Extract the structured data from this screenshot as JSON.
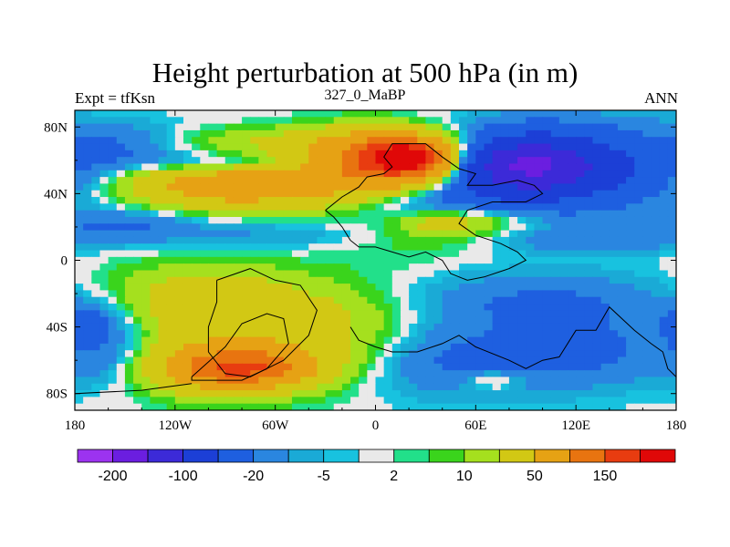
{
  "chart_data": {
    "type": "heatmap",
    "title": "Height perturbation at 500 hPa (in m)",
    "left_string": "Expt = tfKsn",
    "center_string": "327_0_MaBP",
    "right_string": "ANN",
    "x_range": [
      -180,
      180
    ],
    "y_range": [
      -90,
      90
    ],
    "x_ticks": [
      {
        "value": -180,
        "label": "180"
      },
      {
        "value": -120,
        "label": "120W"
      },
      {
        "value": -60,
        "label": "60W"
      },
      {
        "value": 0,
        "label": "0"
      },
      {
        "value": 60,
        "label": "60E"
      },
      {
        "value": 120,
        "label": "120E"
      },
      {
        "value": 180,
        "label": "180"
      }
    ],
    "y_ticks": [
      {
        "value": 80,
        "label": "80N"
      },
      {
        "value": 40,
        "label": "40N"
      },
      {
        "value": 0,
        "label": "0"
      },
      {
        "value": -40,
        "label": "40S"
      },
      {
        "value": -80,
        "label": "80S"
      }
    ],
    "colorbar": {
      "levels": [
        -200,
        -150,
        -100,
        -50,
        -20,
        -10,
        -5,
        -2,
        2,
        5,
        10,
        20,
        50,
        100,
        150,
        200
      ],
      "colors": [
        "#9c33f0",
        "#6b1ee0",
        "#3c2ad8",
        "#1c3fd6",
        "#1e5fe0",
        "#2a86e0",
        "#1aaad6",
        "#18c2df",
        "#e9e9e9",
        "#22e08a",
        "#3ad41c",
        "#a5e01e",
        "#d2c814",
        "#e6a214",
        "#e87410",
        "#e83c10",
        "#e00808"
      ],
      "labels": [
        {
          "value": -200,
          "text": "-200"
        },
        {
          "value": -100,
          "text": "-100"
        },
        {
          "value": -20,
          "text": "-20"
        },
        {
          "value": -5,
          "text": "-5"
        },
        {
          "value": 2,
          "text": "2"
        },
        {
          "value": 10,
          "text": "10"
        },
        {
          "value": 50,
          "text": "50"
        },
        {
          "value": 150,
          "text": "150"
        }
      ]
    },
    "blobs": [
      {
        "lon": -60,
        "lat": 45,
        "rx": 80,
        "ry": 15,
        "v": 35
      },
      {
        "lon": -90,
        "lat": 45,
        "rx": 55,
        "ry": 12,
        "v": 50
      },
      {
        "lon": 0,
        "lat": 60,
        "rx": 50,
        "ry": 18,
        "v": 55
      },
      {
        "lon": 10,
        "lat": 60,
        "rx": 38,
        "ry": 14,
        "v": 100
      },
      {
        "lon": 20,
        "lat": 62,
        "rx": 22,
        "ry": 9,
        "v": 155
      },
      {
        "lon": -60,
        "lat": 72,
        "rx": 130,
        "ry": 8,
        "v": 15
      },
      {
        "lon": -150,
        "lat": 70,
        "rx": 40,
        "ry": 12,
        "v": -22
      },
      {
        "lon": -80,
        "lat": 58,
        "rx": 60,
        "ry": 6,
        "v": -25
      },
      {
        "lon": 110,
        "lat": 55,
        "rx": 75,
        "ry": 25,
        "v": -60
      },
      {
        "lon": 90,
        "lat": 57,
        "rx": 40,
        "ry": 16,
        "v": -110
      },
      {
        "lon": 40,
        "lat": 35,
        "rx": 50,
        "ry": 10,
        "v": -22
      },
      {
        "lon": -150,
        "lat": 22,
        "rx": 40,
        "ry": 8,
        "v": -18
      },
      {
        "lon": -80,
        "lat": 15,
        "rx": 90,
        "ry": 9,
        "v": -12
      },
      {
        "lon": 130,
        "lat": 12,
        "rx": 60,
        "ry": 8,
        "v": -15
      },
      {
        "lon": 60,
        "lat": 25,
        "rx": 40,
        "ry": 10,
        "v": 20
      },
      {
        "lon": 20,
        "lat": 12,
        "rx": 50,
        "ry": 14,
        "v": 8
      },
      {
        "lon": 40,
        "lat": 22,
        "rx": 25,
        "ry": 8,
        "v": 18
      },
      {
        "lon": -100,
        "lat": -25,
        "rx": 60,
        "ry": 22,
        "v": 35
      },
      {
        "lon": -90,
        "lat": -62,
        "rx": 55,
        "ry": 18,
        "v": 60
      },
      {
        "lon": -80,
        "lat": -65,
        "rx": 35,
        "ry": 10,
        "v": 110
      },
      {
        "lon": -30,
        "lat": -45,
        "rx": 45,
        "ry": 25,
        "v": 22
      },
      {
        "lon": 5,
        "lat": -30,
        "rx": 50,
        "ry": 22,
        "v": 6
      },
      {
        "lon": -160,
        "lat": -55,
        "rx": 30,
        "ry": 20,
        "v": -25
      },
      {
        "lon": -170,
        "lat": -35,
        "rx": 20,
        "ry": 12,
        "v": -18
      },
      {
        "lon": 100,
        "lat": -25,
        "rx": 85,
        "ry": 18,
        "v": -22
      },
      {
        "lon": 60,
        "lat": -60,
        "rx": 70,
        "ry": 22,
        "v": -25
      },
      {
        "lon": 140,
        "lat": -55,
        "rx": 40,
        "ry": 20,
        "v": -15
      },
      {
        "lon": -20,
        "lat": -40,
        "rx": 14,
        "ry": 6,
        "v": -3
      },
      {
        "lon": 122,
        "lat": -45,
        "rx": 10,
        "ry": 8,
        "v": 0
      },
      {
        "lon": 70,
        "lat": -72,
        "rx": 18,
        "ry": 6,
        "v": 20
      }
    ],
    "coastlines": [
      [
        [
          -30,
          30
        ],
        [
          -20,
          38
        ],
        [
          -10,
          44
        ],
        [
          -5,
          50
        ],
        [
          5,
          52
        ],
        [
          10,
          56
        ],
        [
          5,
          62
        ],
        [
          10,
          70
        ],
        [
          30,
          70
        ],
        [
          40,
          62
        ],
        [
          50,
          55
        ],
        [
          60,
          52
        ],
        [
          55,
          45
        ],
        [
          70,
          45
        ],
        [
          85,
          48
        ],
        [
          95,
          45
        ],
        [
          100,
          40
        ],
        [
          90,
          35
        ],
        [
          70,
          35
        ],
        [
          55,
          30
        ],
        [
          50,
          22
        ],
        [
          60,
          15
        ],
        [
          75,
          10
        ],
        [
          85,
          5
        ],
        [
          90,
          0
        ],
        [
          80,
          -5
        ],
        [
          65,
          -10
        ],
        [
          55,
          -12
        ],
        [
          45,
          -8
        ],
        [
          40,
          0
        ],
        [
          30,
          5
        ],
        [
          20,
          2
        ],
        [
          10,
          5
        ],
        [
          0,
          8
        ],
        [
          -10,
          8
        ],
        [
          -15,
          12
        ],
        [
          -20,
          20
        ],
        [
          -25,
          26
        ],
        [
          -30,
          30
        ]
      ],
      [
        [
          -15,
          -40
        ],
        [
          -10,
          -48
        ],
        [
          0,
          -52
        ],
        [
          10,
          -55
        ],
        [
          25,
          -55
        ],
        [
          40,
          -50
        ],
        [
          50,
          -45
        ],
        [
          60,
          -52
        ],
        [
          80,
          -60
        ],
        [
          90,
          -65
        ],
        [
          100,
          -60
        ],
        [
          110,
          -58
        ],
        [
          120,
          -42
        ],
        [
          132,
          -42
        ],
        [
          140,
          -28
        ],
        [
          155,
          -42
        ],
        [
          165,
          -50
        ],
        [
          172,
          -55
        ],
        [
          175,
          -65
        ],
        [
          180,
          -70
        ]
      ],
      [
        [
          -95,
          -12
        ],
        [
          -75,
          -5
        ],
        [
          -60,
          -12
        ],
        [
          -45,
          -15
        ],
        [
          -35,
          -30
        ],
        [
          -40,
          -45
        ],
        [
          -55,
          -60
        ],
        [
          -75,
          -70
        ],
        [
          -90,
          -68
        ],
        [
          -100,
          -55
        ],
        [
          -100,
          -40
        ],
        [
          -95,
          -25
        ],
        [
          -95,
          -12
        ]
      ],
      [
        [
          -110,
          -70
        ],
        [
          -90,
          -52
        ],
        [
          -80,
          -38
        ],
        [
          -65,
          -32
        ],
        [
          -55,
          -35
        ],
        [
          -52,
          -50
        ],
        [
          -65,
          -65
        ],
        [
          -80,
          -72
        ],
        [
          -110,
          -72
        ],
        [
          -110,
          -70
        ]
      ],
      [
        [
          -180,
          -80
        ],
        [
          -140,
          -78
        ],
        [
          -110,
          -74
        ]
      ]
    ]
  }
}
